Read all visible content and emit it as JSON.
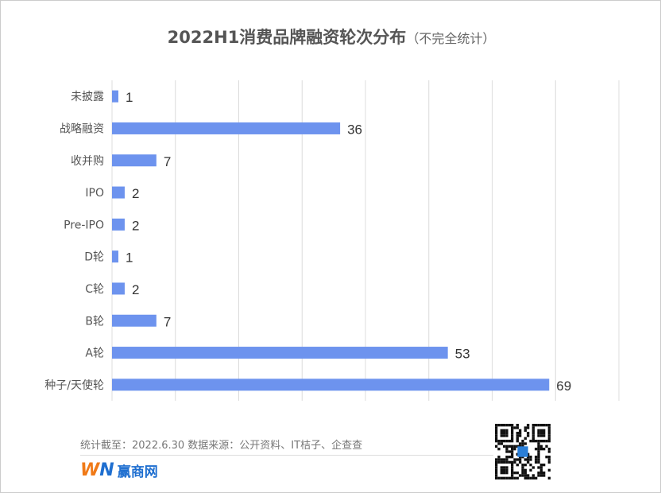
{
  "chart_data": {
    "type": "bar",
    "orientation": "horizontal",
    "title": "2022H1消费品牌融资轮次分布",
    "subtitle": "（不完全统计）",
    "categories": [
      "未披露",
      "战略融资",
      "收并购",
      "IPO",
      "Pre-IPO",
      "D轮",
      "C轮",
      "B轮",
      "A轮",
      "种子/天使轮"
    ],
    "values": [
      1,
      36,
      7,
      2,
      2,
      1,
      2,
      7,
      53,
      69
    ],
    "xlim": [
      0,
      80
    ],
    "grid": true,
    "bar_color": "#6d93ee"
  },
  "footer": {
    "note": "统计截至：2022.6.30  数据来源：公开资料、IT桔子、企查查",
    "logo_text": "赢商网",
    "logo_mark": "WIN"
  }
}
